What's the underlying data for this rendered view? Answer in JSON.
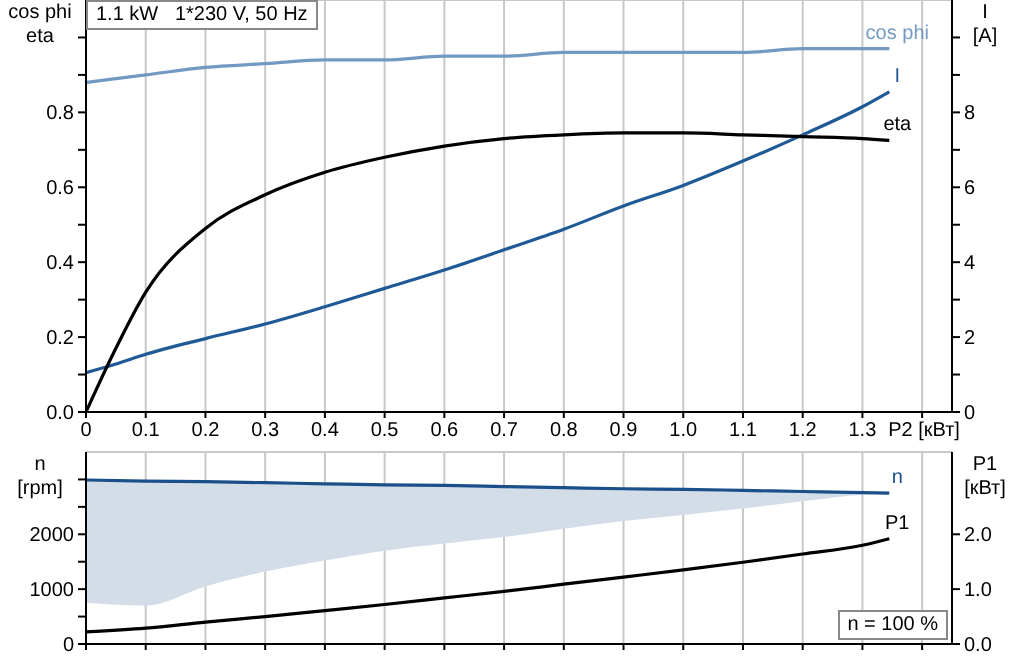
{
  "chart_data": [
    {
      "type": "line",
      "title": "1.1 kW   1*230 V, 50 Hz",
      "ylabel": "cos phi\neta",
      "y2label": "I\n[A]",
      "xlabel": "P2 [кВт]",
      "grid": true,
      "marker": "none",
      "x": [
        0,
        0.05,
        0.1,
        0.2,
        0.3,
        0.4,
        0.5,
        0.6,
        0.7,
        0.8,
        0.9,
        1.0,
        1.1,
        1.2,
        1.3,
        1.345
      ],
      "xlim": [
        0,
        1.45
      ],
      "xticks": [
        {
          "value": 0,
          "label": "0"
        },
        {
          "value": 0.1,
          "label": "0.1"
        },
        {
          "value": 0.2,
          "label": "0.2"
        },
        {
          "value": 0.3,
          "label": "0.3"
        },
        {
          "value": 0.4,
          "label": "0.4"
        },
        {
          "value": 0.5,
          "label": "0.5"
        },
        {
          "value": 0.6,
          "label": "0.6"
        },
        {
          "value": 0.7,
          "label": "0.7"
        },
        {
          "value": 0.8,
          "label": "0.8"
        },
        {
          "value": 0.9,
          "label": "0.9"
        },
        {
          "value": 1.0,
          "label": "1.0"
        },
        {
          "value": 1.1,
          "label": "1.1"
        },
        {
          "value": 1.2,
          "label": "1.2"
        },
        {
          "value": 1.3,
          "label": "1.3"
        },
        {
          "value": 1.4,
          "label": null
        }
      ],
      "ylim": [
        0,
        1.1
      ],
      "yticks": [
        {
          "value": 0,
          "label": "0.0"
        },
        {
          "value": 0.1,
          "label": null
        },
        {
          "value": 0.2,
          "label": "0.2"
        },
        {
          "value": 0.3,
          "label": null
        },
        {
          "value": 0.4,
          "label": "0.4"
        },
        {
          "value": 0.5,
          "label": null
        },
        {
          "value": 0.6,
          "label": "0.6"
        },
        {
          "value": 0.7,
          "label": null
        },
        {
          "value": 0.8,
          "label": "0.8"
        },
        {
          "value": 0.9,
          "label": null
        },
        {
          "value": 1.0,
          "label": null
        }
      ],
      "y2lim": [
        0,
        11
      ],
      "y2ticks": [
        0,
        {
          "value": 1,
          "label": null
        },
        2,
        {
          "value": 3,
          "label": null
        },
        4,
        {
          "value": 5,
          "label": null
        },
        6,
        {
          "value": 7,
          "label": null
        },
        8,
        {
          "value": 9,
          "label": null
        },
        {
          "value": 10,
          "label": null
        }
      ],
      "series": [
        {
          "name": "cos phi",
          "color": "#7199c2",
          "values": [
            0.88,
            0.89,
            0.9,
            0.92,
            0.93,
            0.94,
            0.94,
            0.95,
            0.95,
            0.96,
            0.96,
            0.96,
            0.96,
            0.97,
            0.97,
            0.97
          ]
        },
        {
          "name": "I",
          "color": "#1f5a96",
          "axis": "y2",
          "values": [
            1.05,
            1.28,
            1.54,
            1.96,
            2.35,
            2.81,
            3.3,
            3.79,
            4.33,
            4.88,
            5.5,
            6.05,
            6.7,
            7.4,
            8.15,
            8.55
          ]
        },
        {
          "name": "eta",
          "color": "#000000",
          "values": [
            0,
            0.17,
            0.32,
            0.49,
            0.58,
            0.64,
            0.68,
            0.71,
            0.73,
            0.74,
            0.745,
            0.745,
            0.74,
            0.735,
            0.73,
            0.725
          ]
        }
      ]
    },
    {
      "type": "line",
      "ylabel": "n\n[rpm]",
      "y2label": "P1\n[кВт]",
      "grid": true,
      "marker": "none",
      "tick_labels": "y",
      "annotations": [
        "n = 100 %"
      ],
      "x": [
        0,
        0.1,
        0.2,
        0.3,
        0.4,
        0.5,
        0.6,
        0.7,
        0.8,
        0.9,
        1.0,
        1.1,
        1.2,
        1.3,
        1.345
      ],
      "xlim": [
        0,
        1.45
      ],
      "xticks": [
        0,
        0.1,
        0.2,
        0.3,
        0.4,
        0.5,
        0.6,
        0.7,
        0.8,
        0.9,
        1.0,
        1.1,
        1.2,
        1.3,
        1.4
      ],
      "ylim": [
        0,
        3500
      ],
      "yticks": [
        0,
        {
          "value": 500,
          "label": null
        },
        1000,
        {
          "value": 1500,
          "label": null
        },
        2000,
        {
          "value": 2500,
          "label": null
        },
        {
          "value": 3000,
          "label": null
        }
      ],
      "y2lim": [
        0,
        3.5
      ],
      "y2ticks": [
        {
          "value": 0,
          "label": "0.0"
        },
        {
          "value": 1,
          "label": "1.0"
        },
        {
          "value": 2,
          "label": "2.0"
        }
      ],
      "series": [
        {
          "name": "n",
          "color": "#1a4f8a",
          "values": [
            2990,
            2970,
            2960,
            2940,
            2920,
            2900,
            2890,
            2870,
            2850,
            2830,
            2820,
            2800,
            2780,
            2760,
            2750
          ],
          "lower": [
            750,
            700,
            1050,
            1320,
            1520,
            1700,
            1830,
            1950,
            2100,
            2240,
            2350,
            2470,
            2600,
            2720,
            2750
          ],
          "upper": [
            2990,
            2970,
            2960,
            2940,
            2920,
            2900,
            2890,
            2870,
            2850,
            2830,
            2820,
            2800,
            2780,
            2760,
            2750
          ]
        },
        {
          "name": "P1",
          "color": "#000000",
          "axis": "y2",
          "values": [
            0.22,
            0.29,
            0.4,
            0.5,
            0.61,
            0.72,
            0.84,
            0.96,
            1.09,
            1.22,
            1.35,
            1.49,
            1.64,
            1.8,
            1.92
          ]
        }
      ]
    }
  ]
}
